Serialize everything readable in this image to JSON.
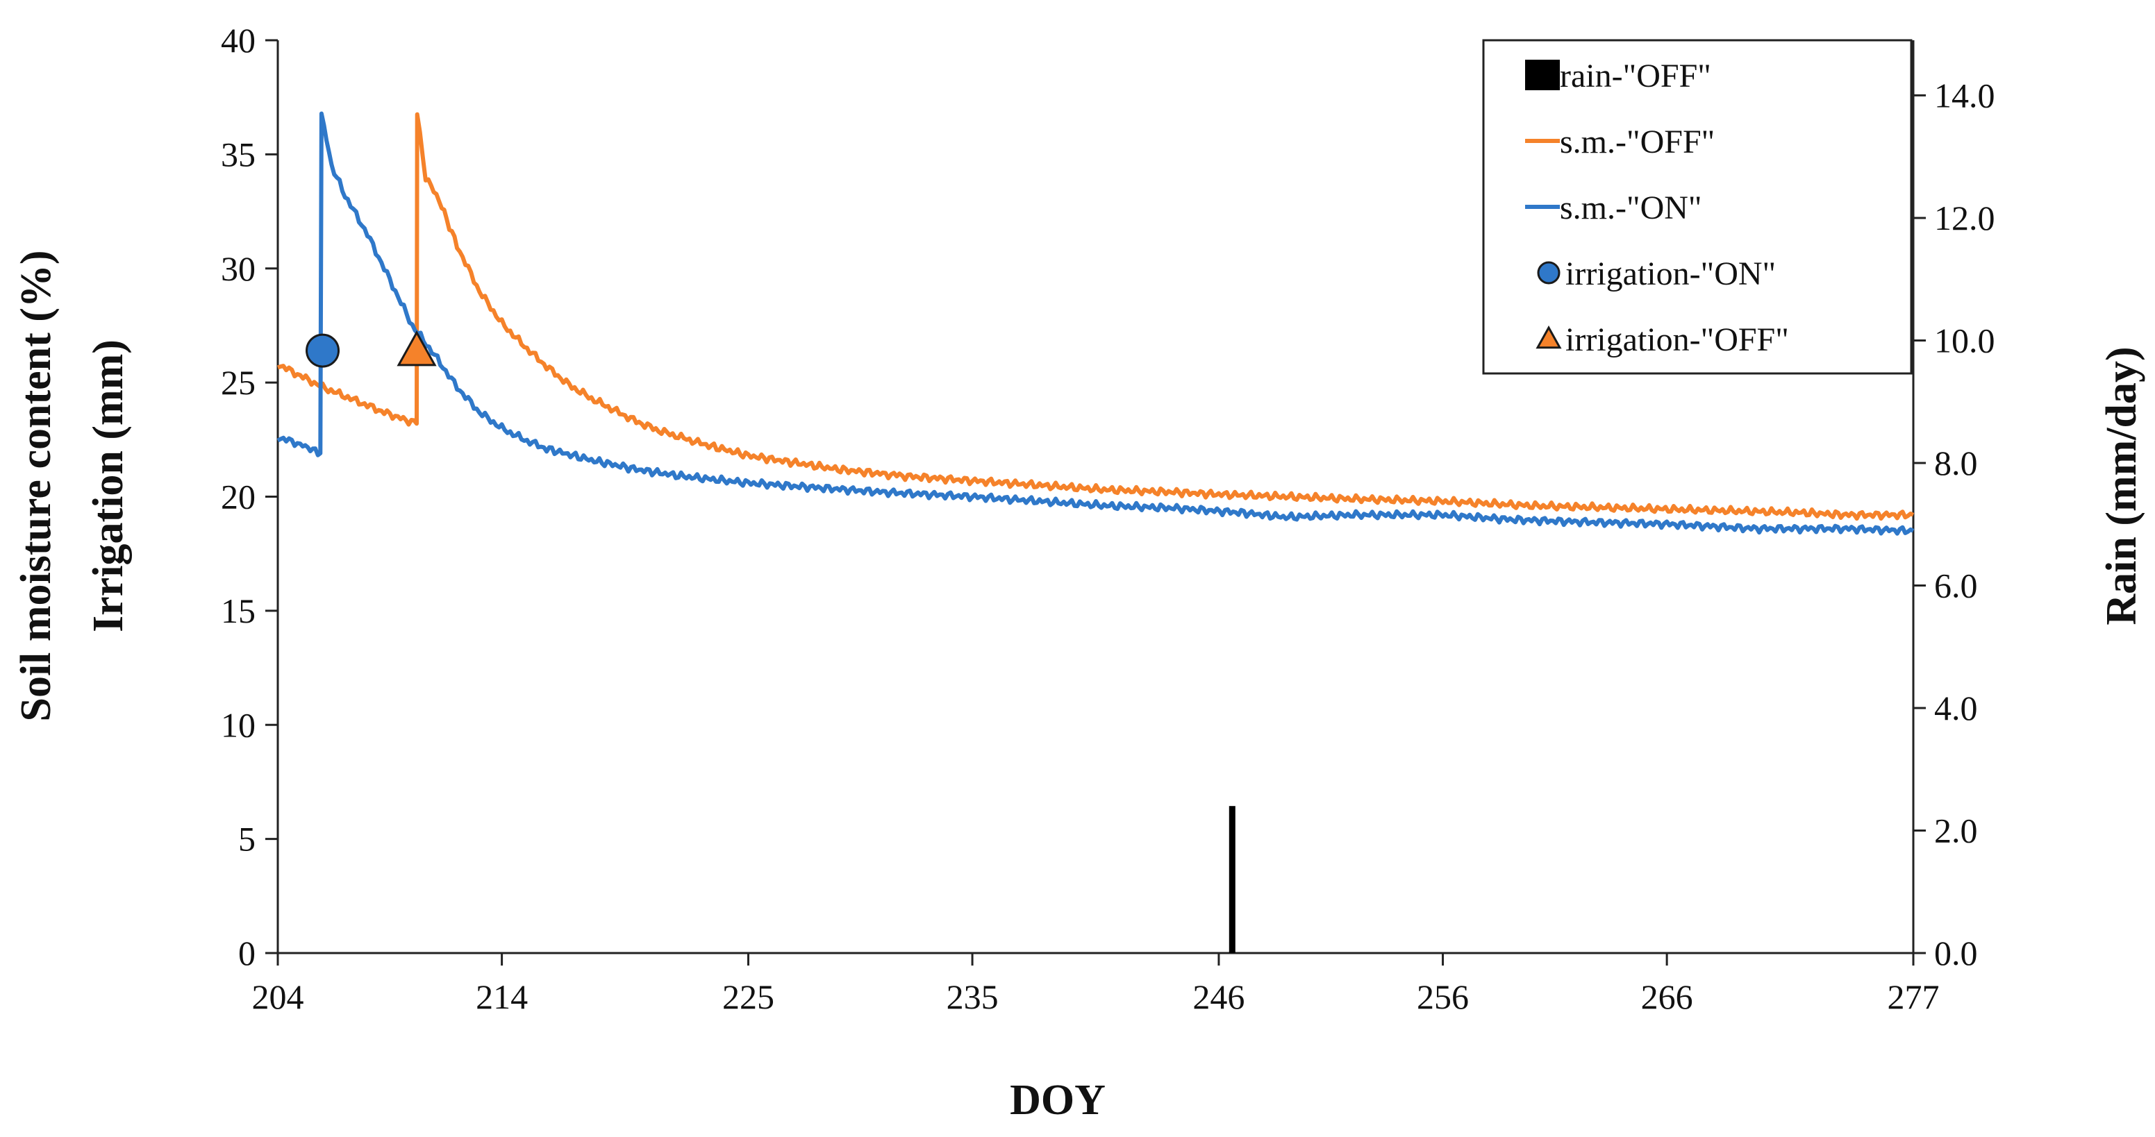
{
  "chart_data": {
    "type": "line",
    "xlabel": "DOY",
    "ylabel_lines": [
      "Soil moisture content (%)",
      "Irrigation (mm)"
    ],
    "y2label": "Rain  (mm/day)",
    "xlim": [
      204,
      277
    ],
    "ylim": [
      0,
      40
    ],
    "y2lim": [
      0,
      14.9
    ],
    "x_ticks": [
      204,
      214,
      225,
      235,
      246,
      256,
      266,
      277
    ],
    "y_ticks": [
      0,
      5,
      10,
      15,
      20,
      25,
      30,
      35,
      40
    ],
    "y2_ticks": [
      "0.0",
      "2.0",
      "4.0",
      "6.0",
      "8.0",
      "10.0",
      "12.0",
      "14.0"
    ],
    "colors": {
      "sm_off": "#f5822a",
      "sm_on": "#2f78c9",
      "rain": "#000000",
      "irr_on_fill": "#2f78c9",
      "irr_off_fill": "#f5822a",
      "axis": "#222222"
    },
    "series": [
      {
        "name": "s.m.-\"OFF\"",
        "key": "sm_off",
        "points": [
          [
            204,
            25.8
          ],
          [
            205,
            25.3
          ],
          [
            206,
            24.8
          ],
          [
            207,
            24.4
          ],
          [
            208,
            24.0
          ],
          [
            209,
            23.6
          ],
          [
            210.2,
            23.2
          ],
          [
            210.22,
            36.8
          ],
          [
            210.6,
            34.0
          ],
          [
            211.2,
            33.0
          ],
          [
            212,
            31.0
          ],
          [
            213,
            29.0
          ],
          [
            214,
            27.6
          ],
          [
            215,
            26.6
          ],
          [
            216,
            25.7
          ],
          [
            217,
            24.9
          ],
          [
            218,
            24.3
          ],
          [
            219,
            23.8
          ],
          [
            220,
            23.3
          ],
          [
            221,
            22.9
          ],
          [
            222,
            22.6
          ],
          [
            223,
            22.3
          ],
          [
            225,
            21.8
          ],
          [
            227,
            21.5
          ],
          [
            229,
            21.2
          ],
          [
            231,
            21.0
          ],
          [
            232,
            20.9
          ],
          [
            235,
            20.7
          ],
          [
            238,
            20.5
          ],
          [
            241,
            20.3
          ],
          [
            244,
            20.2
          ],
          [
            246,
            20.1
          ],
          [
            249,
            20.0
          ],
          [
            252,
            19.9
          ],
          [
            256,
            19.8
          ],
          [
            260,
            19.6
          ],
          [
            264,
            19.5
          ],
          [
            268,
            19.4
          ],
          [
            272,
            19.3
          ],
          [
            274,
            19.2
          ],
          [
            277,
            19.2
          ]
        ]
      },
      {
        "name": "s.m.-\"ON\"",
        "key": "sm_on",
        "points": [
          [
            204,
            22.6
          ],
          [
            205,
            22.3
          ],
          [
            205.9,
            21.9
          ],
          [
            205.95,
            36.8
          ],
          [
            206.4,
            34.5
          ],
          [
            207,
            33.2
          ],
          [
            208,
            31.5
          ],
          [
            209,
            29.5
          ],
          [
            210,
            27.5
          ],
          [
            211,
            26.2
          ],
          [
            212,
            24.8
          ],
          [
            213,
            23.7
          ],
          [
            214,
            23.0
          ],
          [
            215,
            22.5
          ],
          [
            216,
            22.1
          ],
          [
            218,
            21.6
          ],
          [
            220,
            21.2
          ],
          [
            222,
            20.9
          ],
          [
            225,
            20.6
          ],
          [
            228,
            20.4
          ],
          [
            231,
            20.2
          ],
          [
            235,
            20.0
          ],
          [
            238,
            19.8
          ],
          [
            241,
            19.6
          ],
          [
            244,
            19.5
          ],
          [
            247,
            19.3
          ],
          [
            249,
            19.1
          ],
          [
            252,
            19.2
          ],
          [
            256,
            19.2
          ],
          [
            259,
            19.0
          ],
          [
            262,
            18.9
          ],
          [
            266,
            18.8
          ],
          [
            270,
            18.6
          ],
          [
            274,
            18.6
          ],
          [
            277,
            18.5
          ]
        ]
      }
    ],
    "bars": [
      {
        "name": "rain-\"OFF\"",
        "key": "rain",
        "axis": "y2",
        "x": 246.6,
        "value": 2.4
      }
    ],
    "markers": [
      {
        "name": "irrigation-\"ON\"",
        "shape": "circle",
        "x": 206,
        "y": 26.4,
        "fill_key": "irr_on_fill"
      },
      {
        "name": "irrigation-\"OFF\"",
        "shape": "triangle",
        "x": 210.2,
        "y": 26.4,
        "fill_key": "irr_off_fill"
      }
    ],
    "legend": {
      "position": "top-right",
      "entries": [
        {
          "label": "rain-\"OFF\"",
          "kind": "bar",
          "key": "rain"
        },
        {
          "label": "s.m.-\"OFF\"",
          "kind": "line",
          "key": "sm_off"
        },
        {
          "label": "s.m.-\"ON\"",
          "kind": "line",
          "key": "sm_on"
        },
        {
          "label": "irrigation-\"ON\"",
          "kind": "circle",
          "key": "irr_on_fill"
        },
        {
          "label": "irrigation-\"OFF\"",
          "kind": "triangle",
          "key": "irr_off_fill"
        }
      ]
    }
  }
}
